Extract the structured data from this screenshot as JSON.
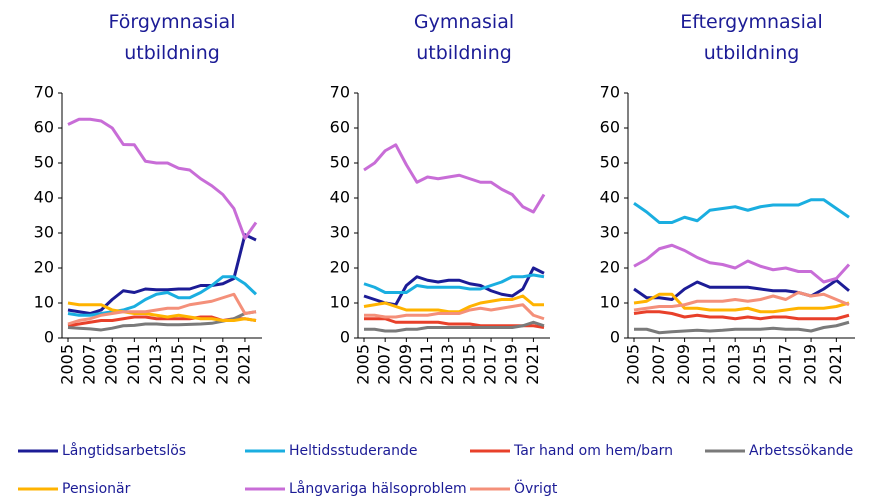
{
  "chart_data": [
    {
      "type": "line",
      "title": [
        "Förgymnasial",
        "utbildning"
      ],
      "x": [
        2005,
        2006,
        2007,
        2008,
        2009,
        2010,
        2011,
        2012,
        2013,
        2014,
        2015,
        2016,
        2017,
        2018,
        2019,
        2020,
        2021,
        2022
      ],
      "xticks": [
        2005,
        2007,
        2009,
        2011,
        2013,
        2015,
        2017,
        2019,
        2021
      ],
      "ylim": [
        0,
        70
      ],
      "yticks": [
        0,
        10,
        20,
        30,
        40,
        50,
        60,
        70
      ],
      "series": [
        {
          "name": "Långtidsarbetslös",
          "color": "#1c1c96",
          "values": [
            8,
            7.5,
            7,
            8,
            11,
            13.5,
            13,
            14,
            13.8,
            13.8,
            14,
            14,
            15,
            15,
            15.5,
            17,
            29.5,
            28
          ]
        },
        {
          "name": "Heltidsstuderande",
          "color": "#1aaee0",
          "values": [
            7,
            6.5,
            6.5,
            7,
            7.5,
            8,
            9,
            11,
            12.5,
            13,
            11.5,
            11.5,
            13,
            15,
            17.5,
            17.5,
            15.5,
            12.5
          ]
        },
        {
          "name": "Tar hand om hem/barn",
          "color": "#e8402a",
          "values": [
            3.5,
            4,
            4.5,
            5,
            5,
            5.5,
            6,
            6,
            5.5,
            5.5,
            5.5,
            5.5,
            6,
            6,
            5,
            5.5,
            5.5,
            5
          ]
        },
        {
          "name": "Arbetssökande",
          "color": "#7a7a7a",
          "values": [
            3,
            2.8,
            2.6,
            2.3,
            2.8,
            3.5,
            3.6,
            4,
            4,
            3.8,
            3.8,
            3.9,
            4,
            4.2,
            4.8,
            5.5,
            7,
            7.5
          ]
        },
        {
          "name": "Pensionär",
          "color": "#ffb300",
          "values": [
            10,
            9.5,
            9.5,
            9.5,
            8,
            7.5,
            7,
            7,
            6.5,
            6,
            6.5,
            6,
            5.5,
            5.5,
            5,
            5,
            5.5,
            5
          ]
        },
        {
          "name": "Långvariga hälsoproblem",
          "color": "#c86dd7",
          "values": [
            61,
            62.5,
            62.5,
            62,
            60,
            55.3,
            55.2,
            50.5,
            50,
            50,
            48.5,
            48,
            45.5,
            43.5,
            41,
            37,
            28.5,
            33
          ]
        },
        {
          "name": "Övrigt",
          "color": "#f4907a",
          "values": [
            4,
            5,
            5.5,
            6.5,
            7,
            7.5,
            7.5,
            7.5,
            8,
            8.5,
            8.5,
            9.5,
            10,
            10.5,
            11.5,
            12.5,
            7,
            7.5
          ]
        }
      ]
    },
    {
      "type": "line",
      "title": [
        "Gymnasial",
        "utbildning"
      ],
      "x": [
        2005,
        2006,
        2007,
        2008,
        2009,
        2010,
        2011,
        2012,
        2013,
        2014,
        2015,
        2016,
        2017,
        2018,
        2019,
        2020,
        2021,
        2022
      ],
      "xticks": [
        2005,
        2007,
        2009,
        2011,
        2013,
        2015,
        2017,
        2019,
        2021
      ],
      "ylim": [
        0,
        70
      ],
      "yticks": [
        0,
        10,
        20,
        30,
        40,
        50,
        60,
        70
      ],
      "series": [
        {
          "color": "#1c1c96",
          "values": [
            12,
            11,
            10,
            9.5,
            15,
            17.5,
            16.5,
            16,
            16.5,
            16.5,
            15.5,
            15,
            13.5,
            12.5,
            12,
            14,
            20,
            18.5
          ]
        },
        {
          "color": "#1aaee0",
          "values": [
            15.5,
            14.5,
            13,
            13,
            13,
            15,
            14.5,
            14.5,
            14.5,
            14.5,
            14,
            14,
            15,
            16,
            17.5,
            17.5,
            18,
            17.5
          ]
        },
        {
          "color": "#e8402a",
          "values": [
            5.5,
            5.5,
            5.5,
            4.5,
            4.5,
            4.5,
            4.5,
            4.5,
            4,
            4,
            4,
            3.5,
            3.5,
            3.5,
            3.5,
            3.5,
            3.5,
            3
          ]
        },
        {
          "color": "#7a7a7a",
          "values": [
            2.5,
            2.5,
            2,
            2,
            2.5,
            2.5,
            3,
            3,
            3,
            3,
            3,
            3,
            3,
            3,
            3,
            3.5,
            4.5,
            3.5
          ]
        },
        {
          "color": "#ffb300",
          "values": [
            9,
            9.5,
            10,
            9,
            8,
            8,
            8,
            8,
            7.5,
            7.5,
            9,
            10,
            10.5,
            11,
            11,
            12,
            9.5,
            9.5
          ]
        },
        {
          "color": "#c86dd7",
          "values": [
            48,
            50,
            53.5,
            55.2,
            49.5,
            44.5,
            46,
            45.5,
            46,
            46.5,
            45.5,
            44.5,
            44.5,
            42.5,
            41,
            37.5,
            36,
            41
          ]
        },
        {
          "color": "#f4907a",
          "values": [
            6.5,
            6.5,
            6,
            6,
            6.5,
            6.5,
            6.5,
            7,
            7,
            7,
            8,
            8.5,
            8,
            8.5,
            9,
            9.5,
            6.5,
            5.5
          ]
        }
      ]
    },
    {
      "type": "line",
      "title": [
        "Eftergymnasial",
        "utbildning"
      ],
      "x": [
        2005,
        2006,
        2007,
        2008,
        2009,
        2010,
        2011,
        2012,
        2013,
        2014,
        2015,
        2016,
        2017,
        2018,
        2019,
        2020,
        2021,
        2022
      ],
      "xticks": [
        2005,
        2007,
        2009,
        2011,
        2013,
        2015,
        2017,
        2019,
        2021
      ],
      "ylim": [
        0,
        70
      ],
      "yticks": [
        0,
        10,
        20,
        30,
        40,
        50,
        60,
        70
      ],
      "series": [
        {
          "color": "#1c1c96",
          "values": [
            14,
            11.5,
            11.5,
            11,
            14,
            16,
            14.5,
            14.5,
            14.5,
            14.5,
            14,
            13.5,
            13.5,
            13,
            12,
            14,
            16.5,
            13.5
          ]
        },
        {
          "color": "#1aaee0",
          "values": [
            38.5,
            36,
            33,
            33,
            34.5,
            33.5,
            36.5,
            37,
            37.5,
            36.5,
            37.5,
            38,
            38,
            38,
            39.5,
            39.5,
            37,
            34.5
          ]
        },
        {
          "color": "#e8402a",
          "values": [
            7,
            7.5,
            7.5,
            7,
            6,
            6.5,
            6,
            6,
            5.5,
            6,
            5.5,
            6,
            6,
            5.5,
            5.5,
            5.5,
            5.5,
            6.5
          ]
        },
        {
          "color": "#7a7a7a",
          "values": [
            2.5,
            2.5,
            1.5,
            1.8,
            2,
            2.2,
            2,
            2.2,
            2.5,
            2.5,
            2.5,
            2.8,
            2.5,
            2.5,
            2,
            3,
            3.5,
            4.5
          ]
        },
        {
          "color": "#ffb300",
          "values": [
            10,
            10.5,
            12.5,
            12.5,
            8.5,
            8.5,
            8,
            8,
            8,
            8.5,
            7.5,
            7.5,
            8,
            8.5,
            8.5,
            8.5,
            9,
            10
          ]
        },
        {
          "color": "#c86dd7",
          "values": [
            20.5,
            22.5,
            25.5,
            26.5,
            25,
            23,
            21.5,
            21,
            20,
            22,
            20.5,
            19.5,
            20,
            19,
            19,
            16,
            17,
            21
          ]
        },
        {
          "color": "#f4907a",
          "values": [
            8,
            8.5,
            9,
            9,
            9.5,
            10.5,
            10.5,
            10.5,
            11,
            10.5,
            11,
            12,
            11,
            13,
            12,
            12.5,
            11,
            9.5
          ]
        }
      ]
    }
  ]
}
